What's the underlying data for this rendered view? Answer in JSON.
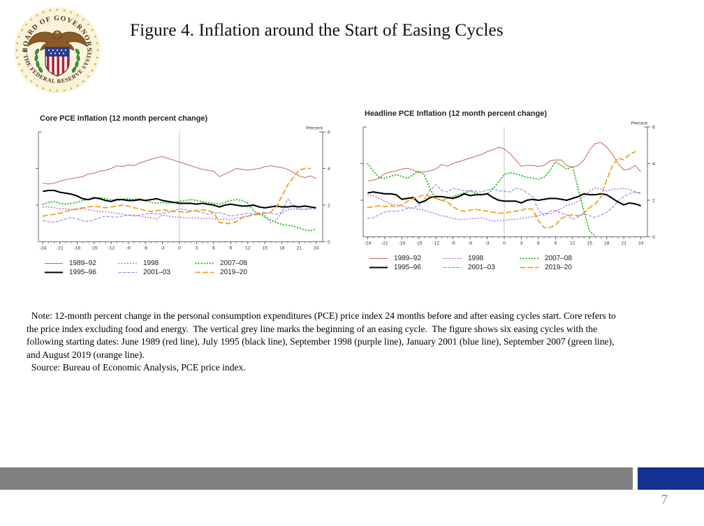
{
  "slide": {
    "title": "Figure 4. Inflation around the Start of Easing Cycles",
    "page_number": "7",
    "logo": {
      "name": "board-of-governors-federal-reserve-seal",
      "arc_text_top": "BOARD OF GOVERNORS",
      "arc_text_bottom": "OF THE FEDERAL RESERVE SYSTEM"
    },
    "footer": {
      "gray_bar_color": "#808080",
      "blue_bar_color": "#123190"
    }
  },
  "note_lines": [
    "  Note: 12-month percent change in the personal consumption expenditures (PCE) price index 24 months before and after easing cycles start. Core refers to",
    "the price index excluding food and energy.  The vertical grey line marks the beginning of an easing cycle.  The figure shows six easing cycles with the",
    "following starting dates: June 1989 (red line), July 1995 (black line), September 1998 (purple line), January 2001 (blue line), September 2007 (green line),",
    "and August 2019 (orange line).",
    "  Source: Bureau of Economic Analysis, PCE price index."
  ],
  "chart_data": [
    {
      "type": "line",
      "title": "Core PCE Inflation (12 month percent change)",
      "unit_label": "Percent",
      "x_start": -24,
      "x_step": 1,
      "x_ticks": [
        -24,
        -21,
        -18,
        -15,
        -12,
        -9,
        -6,
        -3,
        0,
        3,
        6,
        9,
        12,
        15,
        18,
        21,
        24
      ],
      "ylim": [
        0,
        6
      ],
      "y_ticks": [
        0,
        2,
        4,
        6
      ],
      "zero_vertical_line": true,
      "grid": false,
      "legend_position": "bottom",
      "series": [
        {
          "name": "1989–92",
          "color": "#cd5f5f",
          "style": "solid",
          "width": 1.0,
          "values": [
            3.2,
            3.15,
            3.2,
            3.3,
            3.4,
            3.45,
            3.5,
            3.55,
            3.7,
            3.75,
            3.85,
            3.9,
            4.0,
            4.15,
            4.1,
            4.2,
            4.15,
            4.3,
            4.4,
            4.5,
            4.6,
            4.65,
            4.55,
            4.45,
            4.35,
            4.25,
            4.15,
            4.05,
            3.95,
            3.9,
            3.85,
            3.55,
            3.7,
            3.85,
            4.0,
            3.95,
            3.9,
            3.95,
            4.0,
            4.1,
            4.15,
            4.1,
            4.05,
            3.95,
            3.8,
            3.6,
            3.5,
            3.6,
            3.45
          ]
        },
        {
          "name": "1995–96",
          "color": "#000000",
          "style": "solid",
          "width": 2.1,
          "values": [
            2.75,
            2.8,
            2.8,
            2.7,
            2.65,
            2.6,
            2.5,
            2.35,
            2.3,
            2.4,
            2.35,
            2.25,
            2.2,
            2.3,
            2.3,
            2.25,
            2.25,
            2.3,
            2.25,
            2.3,
            2.35,
            2.25,
            2.2,
            2.15,
            2.1,
            2.1,
            2.1,
            2.05,
            2.1,
            2.05,
            2.0,
            1.9,
            2.0,
            2.05,
            2.0,
            1.95,
            1.95,
            2.0,
            1.9,
            1.85,
            1.9,
            1.95,
            1.9,
            1.9,
            1.95,
            1.9,
            1.95,
            1.9,
            1.85
          ]
        },
        {
          "name": "1998",
          "color": "#b56cd6",
          "style": "dotted",
          "width": 1.5,
          "values": [
            1.9,
            1.9,
            1.85,
            1.8,
            1.8,
            1.75,
            1.75,
            1.8,
            1.75,
            1.7,
            1.65,
            1.65,
            1.6,
            1.55,
            1.5,
            1.45,
            1.45,
            1.4,
            1.35,
            1.3,
            1.25,
            1.45,
            1.4,
            1.35,
            1.35,
            1.3,
            1.3,
            1.3,
            1.25,
            1.3,
            1.25,
            1.2,
            1.25,
            1.2,
            1.3,
            1.35,
            1.4,
            1.5,
            1.55,
            1.45,
            1.05,
            1.2,
            1.6,
            1.75,
            1.8,
            1.75,
            1.8,
            1.8,
            1.8
          ]
        },
        {
          "name": "2001–03",
          "color": "#7b7bea",
          "style": "dashed",
          "width": 1.0,
          "values": [
            1.15,
            1.1,
            1.05,
            1.15,
            1.25,
            1.3,
            1.25,
            1.15,
            1.1,
            1.2,
            1.3,
            1.4,
            1.35,
            1.35,
            1.4,
            1.45,
            1.4,
            1.45,
            1.5,
            1.55,
            1.5,
            1.55,
            1.6,
            1.7,
            1.8,
            1.75,
            1.7,
            1.65,
            1.6,
            1.5,
            1.55,
            1.6,
            1.5,
            1.4,
            1.45,
            1.5,
            1.55,
            1.5,
            1.55,
            1.6,
            1.55,
            1.5,
            1.6,
            2.35,
            1.9,
            1.8,
            1.75,
            1.8,
            1.85
          ]
        },
        {
          "name": "2007–08",
          "color": "#2ec22e",
          "style": "dotted",
          "width": 1.9,
          "values": [
            2.05,
            2.15,
            2.2,
            2.1,
            2.05,
            2.1,
            2.15,
            2.25,
            2.3,
            2.35,
            2.4,
            2.35,
            2.3,
            2.25,
            2.3,
            2.35,
            2.3,
            2.35,
            2.25,
            2.15,
            2.1,
            2.15,
            2.1,
            2.15,
            2.2,
            2.25,
            2.3,
            2.25,
            2.2,
            2.15,
            2.1,
            2.05,
            2.15,
            2.25,
            2.3,
            2.25,
            2.1,
            1.7,
            1.5,
            1.35,
            1.2,
            1.05,
            0.95,
            0.9,
            0.85,
            0.75,
            0.65,
            0.6,
            0.7
          ]
        },
        {
          "name": "2019–20",
          "color": "#f2a11c",
          "style": "dashed-long",
          "width": 1.8,
          "values": [
            1.4,
            1.45,
            1.5,
            1.55,
            1.65,
            1.75,
            1.8,
            1.85,
            1.9,
            1.95,
            1.9,
            1.85,
            1.9,
            1.95,
            2.0,
            1.95,
            1.85,
            1.8,
            1.7,
            1.65,
            1.7,
            1.75,
            1.7,
            1.65,
            1.65,
            1.6,
            1.65,
            1.7,
            1.75,
            1.7,
            1.6,
            1.05,
            1.0,
            1.0,
            1.1,
            1.3,
            1.4,
            1.45,
            1.5,
            1.55,
            1.6,
            1.9,
            2.5,
            3.1,
            3.5,
            3.9,
            4.0,
            4.0,
            null
          ]
        }
      ]
    },
    {
      "type": "line",
      "title": "Headline PCE Inflation (12 month percent change)",
      "unit_label": "Percent",
      "x_start": -24,
      "x_step": 1,
      "x_ticks": [
        -24,
        -21,
        -18,
        -15,
        -12,
        -9,
        -6,
        -3,
        0,
        3,
        6,
        9,
        12,
        15,
        18,
        21,
        24
      ],
      "ylim": [
        0,
        6
      ],
      "y_ticks": [
        0,
        2,
        4,
        6
      ],
      "zero_vertical_line": true,
      "grid": false,
      "legend_position": "bottom",
      "series": [
        {
          "name": "1989–92",
          "color": "#cd5f5f",
          "style": "solid",
          "width": 1.0,
          "values": [
            3.05,
            3.1,
            3.2,
            3.45,
            3.55,
            3.6,
            3.7,
            3.75,
            3.65,
            3.5,
            3.55,
            3.6,
            3.7,
            3.95,
            3.85,
            4.0,
            4.1,
            4.2,
            4.3,
            4.4,
            4.5,
            4.65,
            4.75,
            4.9,
            4.8,
            4.55,
            4.2,
            3.85,
            3.9,
            3.9,
            3.85,
            3.9,
            4.15,
            4.2,
            4.2,
            3.9,
            3.8,
            3.9,
            4.2,
            4.75,
            5.1,
            5.15,
            4.9,
            4.5,
            4.0,
            3.65,
            3.7,
            3.9,
            3.55
          ]
        },
        {
          "name": "1995–96",
          "color": "#000000",
          "style": "solid",
          "width": 2.1,
          "values": [
            2.4,
            2.45,
            2.4,
            2.35,
            2.35,
            2.3,
            2.05,
            2.1,
            2.15,
            1.85,
            1.95,
            2.15,
            2.2,
            2.2,
            2.15,
            2.1,
            2.2,
            2.35,
            2.25,
            2.3,
            2.3,
            2.35,
            2.15,
            2.0,
            1.95,
            1.95,
            1.95,
            1.85,
            2.0,
            2.05,
            2.0,
            2.05,
            2.1,
            2.1,
            2.05,
            2.0,
            2.1,
            2.2,
            2.35,
            2.3,
            2.3,
            2.35,
            2.3,
            2.1,
            1.9,
            1.75,
            1.85,
            1.8,
            1.7
          ]
        },
        {
          "name": "1998",
          "color": "#b56cd6",
          "style": "dotted",
          "width": 1.5,
          "values": [
            2.3,
            2.25,
            2.1,
            1.95,
            1.8,
            1.75,
            1.7,
            1.6,
            1.55,
            1.5,
            1.45,
            1.35,
            1.25,
            1.15,
            1.1,
            1.0,
            0.95,
            0.95,
            1.0,
            1.0,
            1.05,
            0.95,
            0.85,
            0.9,
            0.9,
            0.95,
            0.95,
            1.0,
            1.05,
            1.1,
            1.15,
            1.3,
            1.25,
            1.4,
            1.55,
            1.7,
            1.8,
            1.95,
            2.2,
            2.5,
            2.65,
            2.6,
            2.5,
            2.6,
            2.6,
            2.65,
            2.6,
            2.45,
            2.4
          ]
        },
        {
          "name": "2001–03",
          "color": "#7b7bea",
          "style": "dashed",
          "width": 1.0,
          "values": [
            1.0,
            1.05,
            1.2,
            1.35,
            1.4,
            1.4,
            1.45,
            1.55,
            1.6,
            1.7,
            2.1,
            2.55,
            2.85,
            2.55,
            2.45,
            2.65,
            2.6,
            2.5,
            2.55,
            2.5,
            2.45,
            2.55,
            2.65,
            2.5,
            2.5,
            2.45,
            2.65,
            2.6,
            2.4,
            2.2,
            1.45,
            1.15,
            1.4,
            1.45,
            1.3,
            1.2,
            0.95,
            1.1,
            1.25,
            1.15,
            1.05,
            1.2,
            1.35,
            1.6,
            1.95,
            2.2,
            2.35,
            2.45,
            2.35
          ]
        },
        {
          "name": "2007–08",
          "color": "#2ec22e",
          "style": "dotted",
          "width": 1.9,
          "values": [
            4.0,
            3.6,
            3.25,
            3.2,
            3.3,
            3.4,
            3.3,
            3.2,
            3.4,
            3.6,
            3.35,
            2.6,
            2.1,
            2.0,
            2.1,
            2.2,
            2.3,
            2.4,
            2.5,
            2.4,
            2.3,
            2.35,
            2.6,
            3.0,
            3.4,
            3.5,
            3.45,
            3.35,
            3.25,
            3.2,
            3.15,
            3.25,
            3.6,
            4.1,
            3.9,
            3.7,
            3.85,
            2.6,
            1.4,
            0.3,
            0.05,
            null,
            null,
            null,
            null,
            null,
            null,
            null,
            null
          ]
        },
        {
          "name": "2019–20",
          "color": "#f2a11c",
          "style": "dashed-long",
          "width": 1.8,
          "values": [
            1.6,
            1.65,
            1.7,
            1.65,
            1.7,
            1.65,
            1.75,
            1.95,
            2.1,
            2.2,
            2.3,
            2.2,
            2.1,
            2.0,
            1.9,
            1.65,
            1.45,
            1.4,
            1.45,
            1.5,
            1.45,
            1.4,
            1.35,
            1.3,
            1.3,
            1.35,
            1.4,
            1.45,
            1.55,
            1.5,
            0.9,
            0.5,
            0.5,
            0.65,
            1.0,
            1.15,
            1.2,
            1.15,
            1.3,
            1.6,
            1.8,
            2.2,
            3.1,
            3.9,
            4.3,
            4.2,
            4.5,
            4.65,
            null
          ]
        }
      ]
    }
  ]
}
